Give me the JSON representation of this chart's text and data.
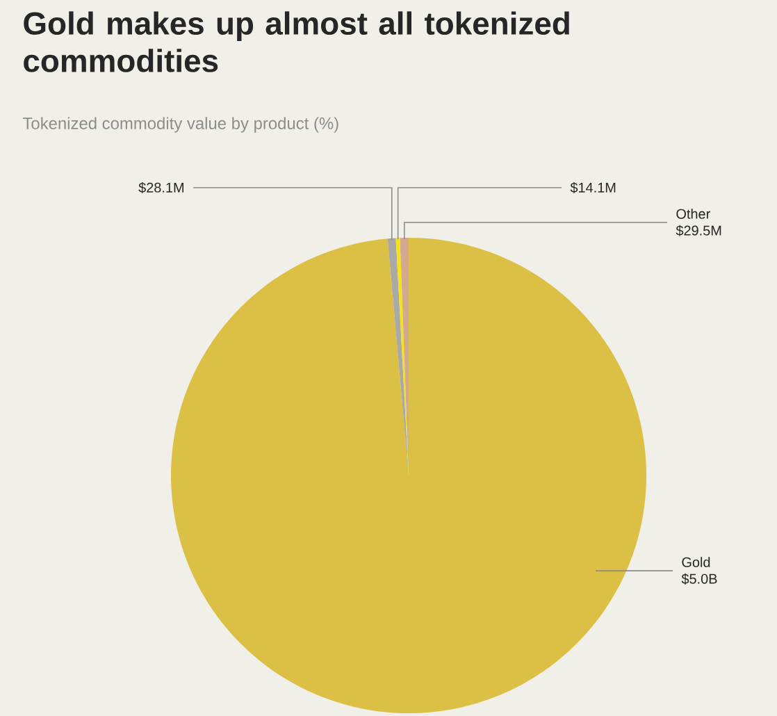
{
  "chart_data": {
    "type": "pie",
    "title": "Gold makes up almost all tokenized commodities",
    "subtitle": "Tokenized commodity value by product (%)",
    "categories": [
      "Gold",
      null,
      null,
      "Other"
    ],
    "values": [
      5000000000,
      28100000,
      14100000,
      29500000
    ],
    "value_labels": [
      "$5.0B",
      "$28.1M",
      "$14.1M",
      "$29.5M"
    ],
    "colors": [
      "#dcbf45",
      "#a9a9a6",
      "#f5e21c",
      "#d3aa90"
    ]
  }
}
